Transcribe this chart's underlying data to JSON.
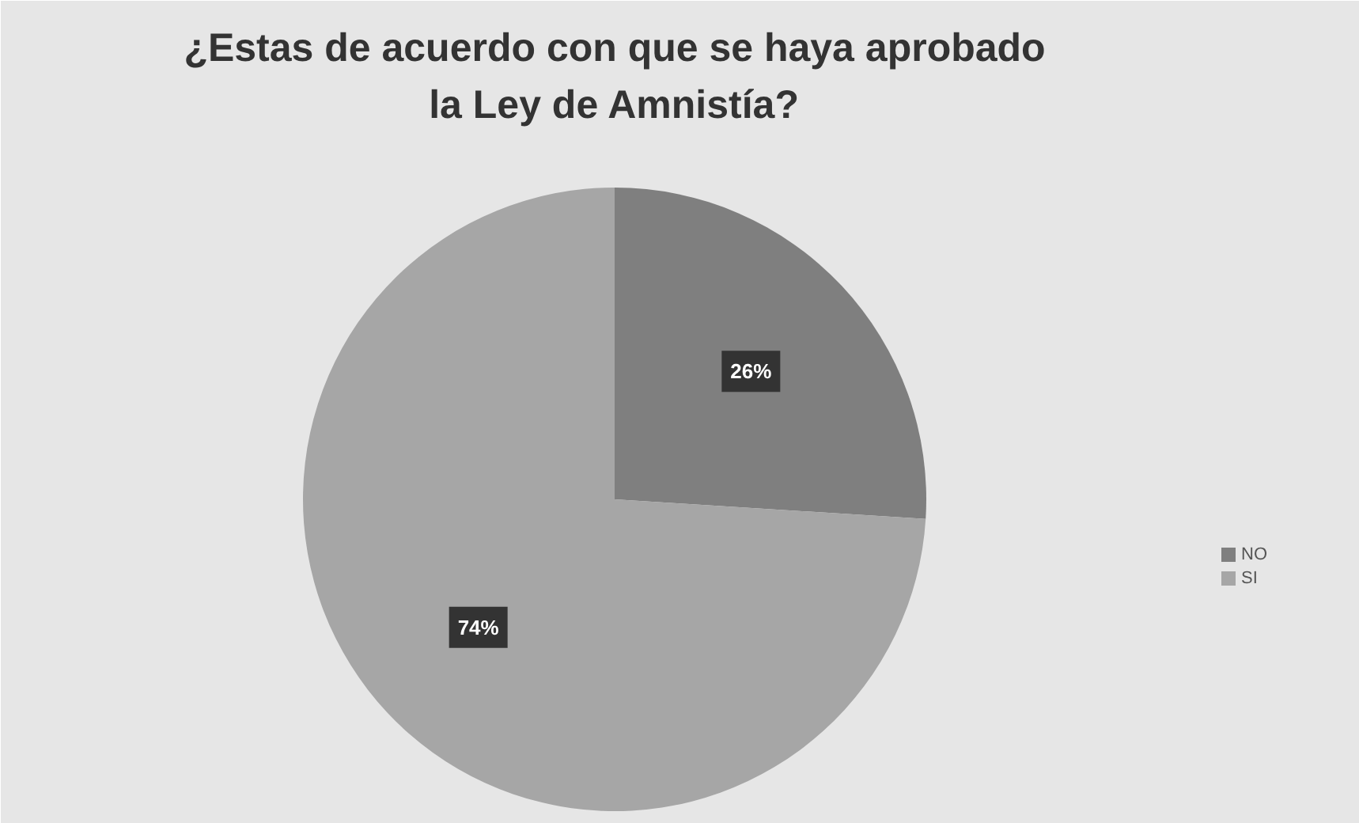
{
  "chart_data": {
    "type": "pie",
    "title": "¿Estas de acuerdo con que se haya aprobado la Ley de Amnistía?",
    "categories": [
      "NO",
      "SI"
    ],
    "values": [
      26,
      74
    ],
    "colors": [
      "#7f7f7f",
      "#a6a6a6"
    ],
    "value_labels": [
      "26%",
      "74%"
    ],
    "legend": "right"
  }
}
